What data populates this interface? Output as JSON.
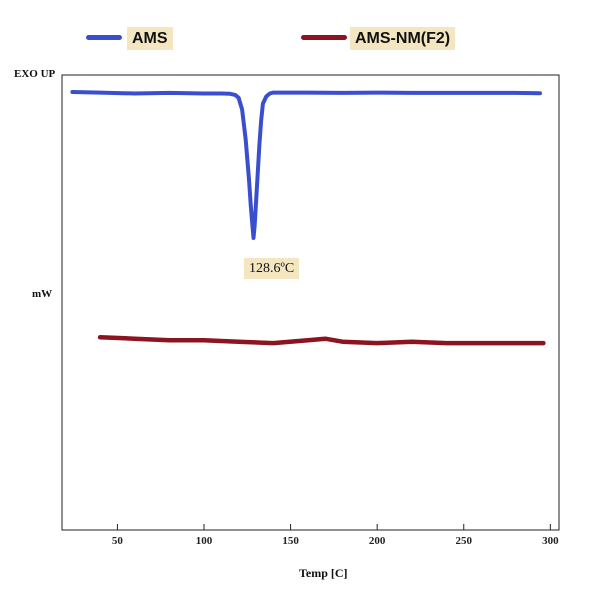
{
  "legend": {
    "items": [
      {
        "label": "AMS",
        "color": "#3a4fcf"
      },
      {
        "label": "AMS-NM(F2)",
        "color": "#8b1420"
      }
    ]
  },
  "axis_labels": {
    "y_top": "EXO UP",
    "y_mid": "mW",
    "x": "Temp [C]"
  },
  "annotation": {
    "peak_label": "128.6ºC"
  },
  "chart_data": {
    "type": "line",
    "title": "",
    "xlabel": "Temp [C]",
    "ylabel": "mW",
    "xlim": [
      18,
      305
    ],
    "ylim": [
      -10,
      1
    ],
    "x_ticks": [
      50,
      100,
      150,
      200,
      250,
      300
    ],
    "grid": false,
    "legend_position": "top",
    "series": [
      {
        "name": "AMS",
        "color": "#3a4fcf",
        "x": [
          24,
          40,
          60,
          80,
          100,
          110,
          115,
          118,
          120,
          122,
          124,
          126,
          127,
          128,
          128.6,
          129.2,
          130,
          131,
          132,
          133,
          134,
          136,
          138,
          140,
          160,
          180,
          200,
          220,
          240,
          260,
          280,
          294
        ],
        "y": [
          0.0,
          -0.02,
          -0.05,
          -0.03,
          -0.05,
          -0.05,
          -0.06,
          -0.1,
          -0.2,
          -0.6,
          -1.6,
          -3.0,
          -3.9,
          -4.6,
          -5.0,
          -4.6,
          -3.8,
          -2.8,
          -1.8,
          -1.0,
          -0.4,
          -0.15,
          -0.05,
          -0.02,
          -0.02,
          -0.03,
          -0.02,
          -0.03,
          -0.03,
          -0.03,
          -0.03,
          -0.04
        ]
      },
      {
        "name": "AMS-NM(F2)",
        "color": "#8b1420",
        "x": [
          40,
          60,
          80,
          100,
          120,
          140,
          160,
          170,
          180,
          200,
          220,
          240,
          260,
          280,
          296
        ],
        "y": [
          -8.4,
          -8.45,
          -8.5,
          -8.5,
          -8.55,
          -8.6,
          -8.5,
          -8.45,
          -8.55,
          -8.6,
          -8.55,
          -8.6,
          -8.6,
          -8.6,
          -8.6
        ]
      }
    ]
  }
}
